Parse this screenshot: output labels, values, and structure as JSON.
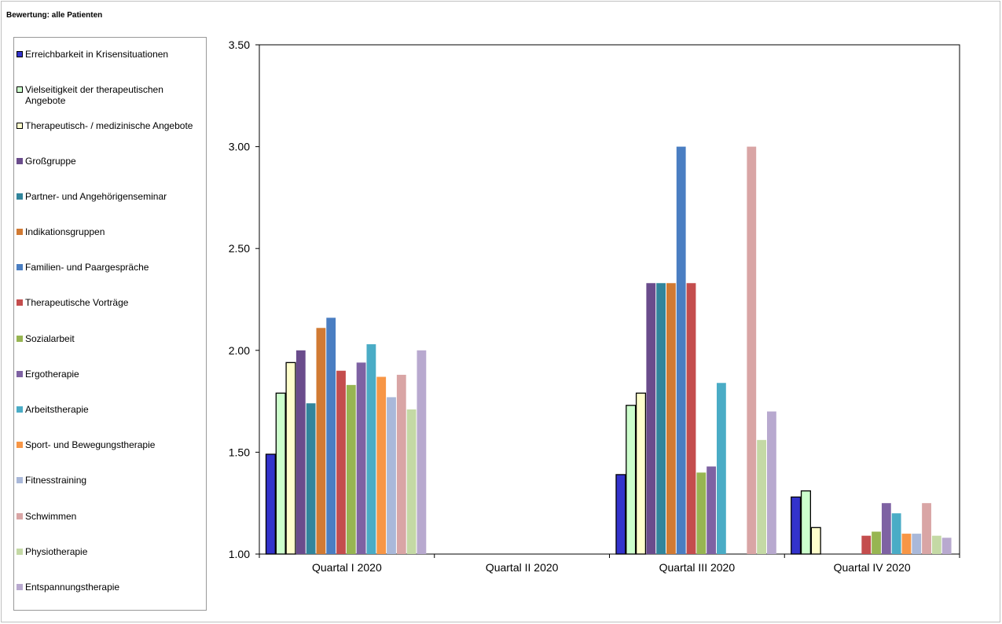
{
  "header": {
    "title": "Bewertung: alle Patienten"
  },
  "chart_data": {
    "type": "bar",
    "title": "Bewertung: alle Patienten",
    "xlabel": "",
    "ylabel": "",
    "ylim": [
      1.0,
      3.5
    ],
    "y_ticks": [
      "1.00",
      "1.50",
      "2.00",
      "2.50",
      "3.00",
      "3.50"
    ],
    "grid": false,
    "legend_position": "left",
    "categories": [
      "Quartal I 2020",
      "Quartal II 2020",
      "Quartal III 2020",
      "Quartal IV 2020"
    ],
    "series": [
      {
        "name": "Erreichbarkeit in Krisensituationen",
        "color": "#3333cc",
        "border": "#000000",
        "values": [
          1.49,
          null,
          1.39,
          1.28
        ]
      },
      {
        "name": "Vielseitigkeit der therapeutischen Angebote",
        "color": "#ccffcc",
        "border": "#000000",
        "values": [
          1.79,
          null,
          1.73,
          1.31
        ]
      },
      {
        "name": "Therapeutisch- / medizinische Angebote",
        "color": "#ffffcc",
        "border": "#000000",
        "values": [
          1.94,
          null,
          1.79,
          1.13
        ]
      },
      {
        "name": "Großgruppe",
        "color": "#6a4c8c",
        "border": null,
        "values": [
          2.0,
          null,
          2.33,
          null
        ]
      },
      {
        "name": "Partner- und Angehörigenseminar",
        "color": "#31859c",
        "border": null,
        "values": [
          1.74,
          null,
          2.33,
          null
        ]
      },
      {
        "name": "Indikationsgruppen",
        "color": "#d17a33",
        "border": null,
        "values": [
          2.11,
          null,
          2.33,
          null
        ]
      },
      {
        "name": "Familien- und Paargespräche",
        "color": "#4a7ec2",
        "border": null,
        "values": [
          2.16,
          null,
          3.0,
          null
        ]
      },
      {
        "name": "Therapeutische Vorträge",
        "color": "#c44d4d",
        "border": null,
        "values": [
          1.9,
          null,
          2.33,
          1.09
        ]
      },
      {
        "name": "Sozialarbeit",
        "color": "#97b552",
        "border": null,
        "values": [
          1.83,
          null,
          1.4,
          1.11
        ]
      },
      {
        "name": "Ergotherapie",
        "color": "#7e62a3",
        "border": null,
        "values": [
          1.94,
          null,
          1.43,
          1.25
        ]
      },
      {
        "name": "Arbeitstherapie",
        "color": "#4aacc6",
        "border": null,
        "values": [
          2.03,
          null,
          1.84,
          1.2
        ]
      },
      {
        "name": "Sport- und Bewegungstherapie",
        "color": "#f79646",
        "border": null,
        "values": [
          1.87,
          null,
          null,
          1.1
        ]
      },
      {
        "name": "Fitnesstraining",
        "color": "#a9b8d9",
        "border": null,
        "values": [
          1.77,
          null,
          null,
          1.1
        ]
      },
      {
        "name": "Schwimmen",
        "color": "#d9a5a5",
        "border": null,
        "values": [
          1.88,
          null,
          3.0,
          1.25
        ]
      },
      {
        "name": "Physiotherapie",
        "color": "#c4d9a5",
        "border": null,
        "values": [
          1.71,
          null,
          1.56,
          1.09
        ]
      },
      {
        "name": "Entspannungstherapie",
        "color": "#b8a9cf",
        "border": null,
        "values": [
          2.0,
          null,
          1.7,
          1.08
        ]
      }
    ]
  }
}
